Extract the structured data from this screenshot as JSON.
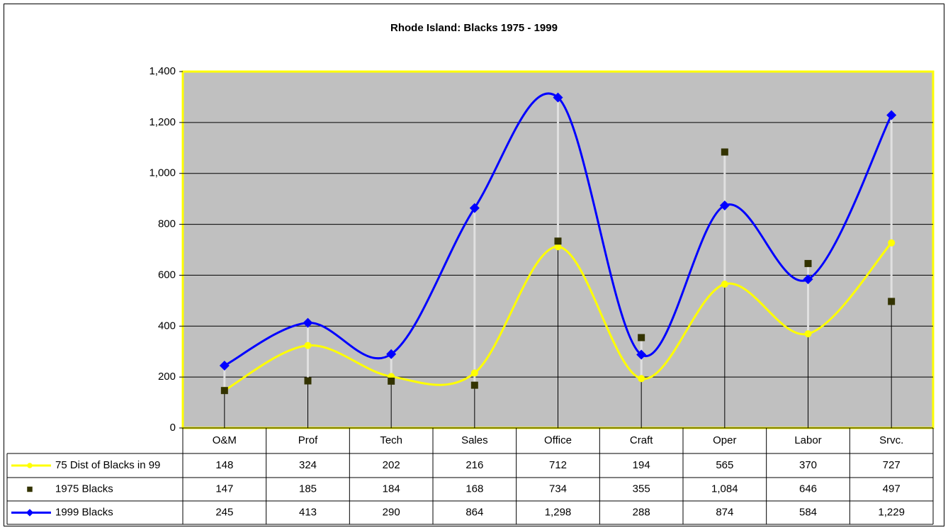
{
  "chart_data": {
    "type": "line",
    "title": "Rhode Island: Blacks 1975 - 1999",
    "categories": [
      "O&M",
      "Prof",
      "Tech",
      "Sales",
      "Office",
      "Craft",
      "Oper",
      "Labor",
      "Srvc."
    ],
    "series": [
      {
        "name": "75 Dist of Blacks in 99",
        "color": "#ffff00",
        "marker": "circle",
        "line": true,
        "values": [
          148,
          324,
          202,
          216,
          712,
          194,
          565,
          370,
          727
        ]
      },
      {
        "name": "1975 Blacks",
        "color": "#333300",
        "marker": "square",
        "line": false,
        "values": [
          147,
          185,
          184,
          168,
          734,
          355,
          1084,
          646,
          497
        ],
        "value_labels": [
          "147",
          "185",
          "184",
          "168",
          "734",
          "355",
          "1,084",
          "646",
          "497"
        ]
      },
      {
        "name": "1999 Blacks",
        "color": "#0000ff",
        "marker": "diamond",
        "line": true,
        "values": [
          245,
          413,
          290,
          864,
          1298,
          288,
          874,
          584,
          1229
        ],
        "value_labels": [
          "245",
          "413",
          "290",
          "864",
          "1,298",
          "288",
          "874",
          "584",
          "1,229"
        ]
      }
    ],
    "ylim": [
      0,
      1400
    ],
    "yticks": [
      0,
      200,
      400,
      600,
      800,
      {
        "value": 1000,
        "label": "1,000"
      },
      {
        "value": 1200,
        "label": "1,200"
      },
      {
        "value": 1400,
        "label": "1,400"
      }
    ],
    "grid": true,
    "plot_background": "#c0c0c0",
    "plot_border": "#ffff00"
  }
}
